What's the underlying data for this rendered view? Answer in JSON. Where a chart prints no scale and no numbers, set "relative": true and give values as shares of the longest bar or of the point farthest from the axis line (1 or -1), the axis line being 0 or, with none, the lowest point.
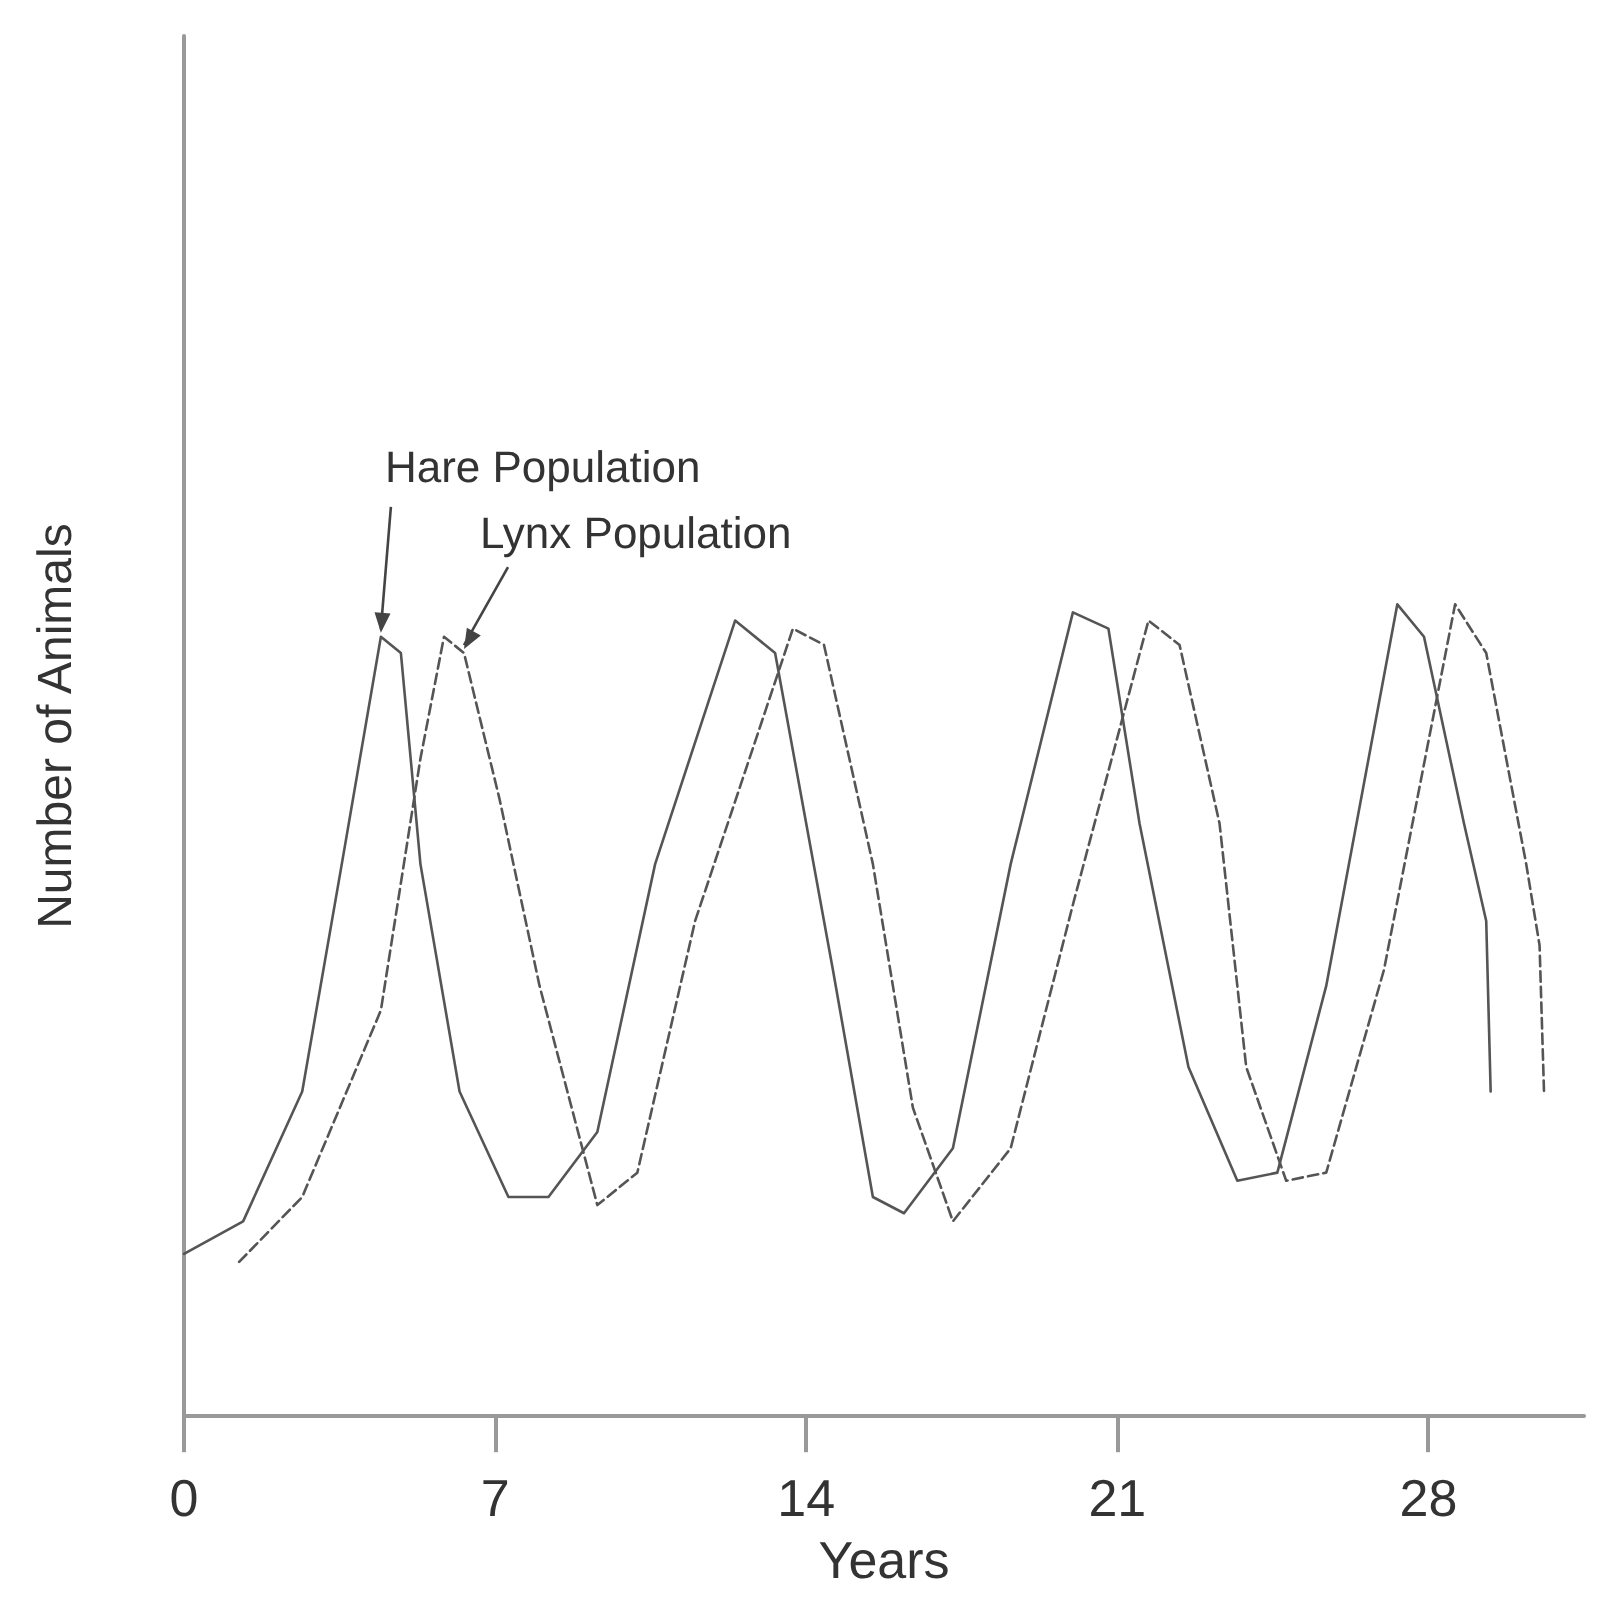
{
  "chart_data": {
    "type": "line",
    "xlabel": "Years",
    "ylabel": "Number of Animals",
    "relative": true,
    "xlim": [
      0,
      31.5
    ],
    "xticks": [
      0,
      7,
      14,
      21,
      28
    ],
    "grid": false,
    "marker": "none",
    "series": [
      {
        "color": "#555555",
        "line_style": "solid",
        "x": [
          0,
          1.33,
          2.66,
          3.55,
          4.43,
          4.88,
          5.32,
          6.2,
          7.3,
          8.2,
          9.3,
          10.6,
          12.4,
          13.3,
          14.6,
          15.5,
          16.2,
          17.3,
          18.6,
          20,
          20.8,
          21.5,
          22.6,
          23.7,
          24.6,
          25.7,
          27.3,
          27.9,
          28.8,
          29.3,
          29.4
        ],
        "values": [
          0.2,
          0.24,
          0.4,
          0.68,
          0.96,
          0.94,
          0.68,
          0.4,
          0.27,
          0.27,
          0.35,
          0.68,
          0.98,
          0.94,
          0.55,
          0.27,
          0.25,
          0.33,
          0.68,
          0.99,
          0.97,
          0.73,
          0.43,
          0.29,
          0.3,
          0.53,
          1,
          0.96,
          0.73,
          0.61,
          0.4
        ]
      },
      {
        "color": "#555555",
        "line_style": "dashed",
        "x": [
          1.24,
          2.66,
          4.43,
          5.32,
          5.85,
          6.3,
          7.1,
          8,
          9.3,
          10.2,
          11.5,
          13.7,
          14.4,
          15.5,
          16.4,
          17.3,
          18.6,
          20,
          21.7,
          22.4,
          23.3,
          23.9,
          24.8,
          25.7,
          27,
          28.6,
          29.3,
          30.2,
          30.5,
          30.6
        ],
        "values": [
          0.19,
          0.27,
          0.5,
          0.81,
          0.96,
          0.94,
          0.76,
          0.53,
          0.26,
          0.3,
          0.61,
          0.97,
          0.95,
          0.68,
          0.38,
          0.24,
          0.33,
          0.63,
          0.98,
          0.95,
          0.73,
          0.43,
          0.29,
          0.3,
          0.55,
          1,
          0.94,
          0.68,
          0.58,
          0.4
        ]
      }
    ],
    "annotations": [
      {
        "text": "Hare Population",
        "x": 4.43,
        "y": 0.96
      },
      {
        "text": "Lynx Population",
        "x": 6.3,
        "y": 0.94
      }
    ]
  }
}
